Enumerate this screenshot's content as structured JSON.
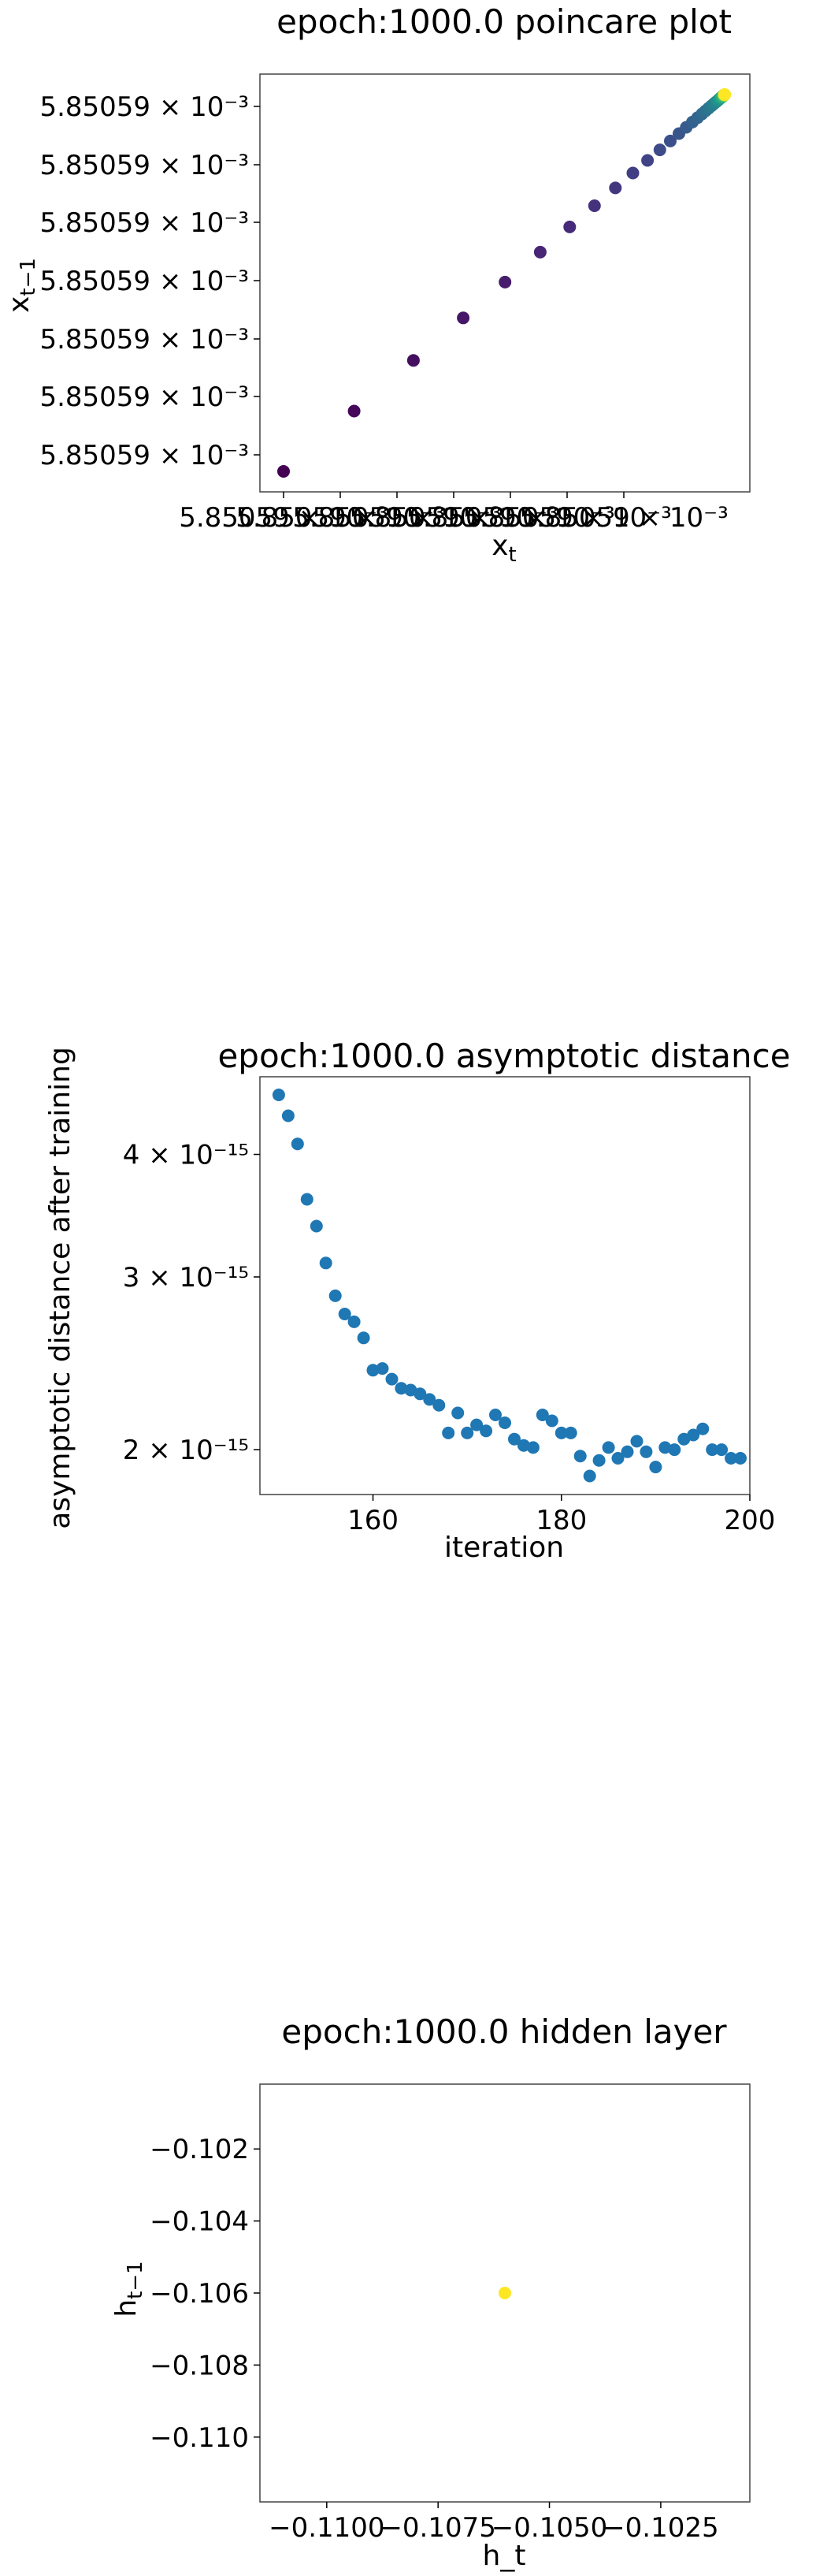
{
  "chart_data": [
    {
      "type": "scatter",
      "title": "epoch:1000.0 poincare plot",
      "xlabel": "x_t",
      "ylabel": "x_{t-1}",
      "colormap": "viridis",
      "x_tick_labels": [
        "5.85059 × 10⁻³",
        "5.85059 × 10⁻³",
        "5.85059 × 10⁻³",
        "5.85059 × 10⁻³",
        "5.85059 × 10⁻³",
        "5.85059 × 10⁻³",
        "5.85059 × 10⁻³"
      ],
      "y_tick_labels": [
        "5.85059 × 10⁻³",
        "5.85059 × 10⁻³",
        "5.85059 × 10⁻³",
        "5.85059 × 10⁻³",
        "5.85059 × 10⁻³",
        "5.85059 × 10⁻³",
        "5.85059 × 10⁻³"
      ],
      "n_points": 50,
      "note_values": "all values ≈ 5.85059e-3; points lie on a diagonal line, spacing decreasing toward the upper right"
    },
    {
      "type": "scatter",
      "title": "epoch:1000.0 asymptotic distance",
      "xlabel": "iteration",
      "ylabel": "asymptotic distance after training",
      "yscale": "log",
      "color": "#1f77b4",
      "xlim": [
        148,
        200
      ],
      "ylim": [
        1.8e-15,
        4.8e-15
      ],
      "x_ticks": [
        160,
        180,
        200
      ],
      "y_ticks": [
        2e-15,
        3e-15,
        4e-15
      ],
      "x_tick_labels": [
        "160",
        "180",
        "200"
      ],
      "y_tick_labels": [
        "2 × 10⁻¹⁵",
        "3 × 10⁻¹⁵",
        "4 × 10⁻¹⁵"
      ],
      "x": [
        150,
        151,
        152,
        153,
        154,
        155,
        156,
        157,
        158,
        159,
        160,
        161,
        162,
        163,
        164,
        165,
        166,
        167,
        168,
        169,
        170,
        171,
        172,
        173,
        174,
        175,
        176,
        177,
        178,
        179,
        180,
        181,
        182,
        183,
        184,
        185,
        186,
        187,
        188,
        189,
        190,
        191,
        192,
        193,
        194,
        195,
        196,
        197,
        198,
        199
      ],
      "y": [
        4.6e-15,
        4.38e-15,
        4.1e-15,
        3.6e-15,
        3.38e-15,
        3.1e-15,
        2.87e-15,
        2.75e-15,
        2.7e-15,
        2.6e-15,
        2.41e-15,
        2.42e-15,
        2.36e-15,
        2.31e-15,
        2.3e-15,
        2.28e-15,
        2.25e-15,
        2.22e-15,
        2.08e-15,
        2.18e-15,
        2.08e-15,
        2.12e-15,
        2.09e-15,
        2.17e-15,
        2.13e-15,
        2.05e-15,
        2.02e-15,
        2.01e-15,
        2.17e-15,
        2.14e-15,
        2.08e-15,
        2.08e-15,
        1.97e-15,
        1.88e-15,
        1.95e-15,
        2.01e-15,
        1.96e-15,
        1.99e-15,
        2.04e-15,
        1.99e-15,
        1.92e-15,
        2.01e-15,
        2e-15,
        2.05e-15,
        2.07e-15,
        2.1e-15,
        2e-15,
        2e-15,
        1.96e-15,
        1.96e-15
      ]
    },
    {
      "type": "scatter",
      "title": "epoch:1000.0 hidden layer",
      "xlabel": "h_t",
      "ylabel": "h_{t-1}",
      "color": "#fde725",
      "xlim": [
        -0.1115,
        -0.1005
      ],
      "ylim": [
        -0.1118,
        -0.1002
      ],
      "x_ticks": [
        -0.11,
        -0.1075,
        -0.105,
        -0.1025
      ],
      "y_ticks": [
        -0.11,
        -0.108,
        -0.106,
        -0.104,
        -0.102
      ],
      "x_tick_labels": [
        "−0.1100",
        "−0.1075",
        "−0.1050",
        "−0.1025"
      ],
      "y_tick_labels": [
        "−0.110",
        "−0.108",
        "−0.106",
        "−0.104",
        "−0.102"
      ],
      "x": [
        -0.106
      ],
      "y": [
        -0.106
      ]
    }
  ]
}
